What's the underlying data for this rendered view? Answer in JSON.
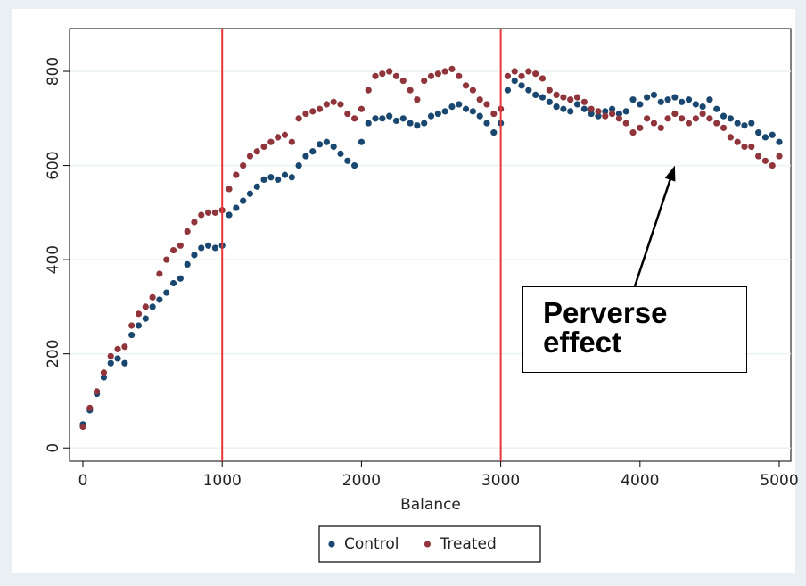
{
  "chart_data": {
    "type": "scatter",
    "x_label": "Balance",
    "x": [
      0,
      50,
      100,
      150,
      200,
      250,
      300,
      350,
      400,
      450,
      500,
      550,
      600,
      650,
      700,
      750,
      800,
      850,
      900,
      950,
      1000,
      1050,
      1100,
      1150,
      1200,
      1250,
      1300,
      1350,
      1400,
      1450,
      1500,
      1550,
      1600,
      1650,
      1700,
      1750,
      1800,
      1850,
      1900,
      1950,
      2000,
      2050,
      2100,
      2150,
      2200,
      2250,
      2300,
      2350,
      2400,
      2450,
      2500,
      2550,
      2600,
      2650,
      2700,
      2750,
      2800,
      2850,
      2900,
      2950,
      3000,
      3050,
      3100,
      3150,
      3200,
      3250,
      3300,
      3350,
      3400,
      3450,
      3500,
      3550,
      3600,
      3650,
      3700,
      3750,
      3800,
      3850,
      3900,
      3950,
      4000,
      4050,
      4100,
      4150,
      4200,
      4250,
      4300,
      4350,
      4400,
      4450,
      4500,
      4550,
      4600,
      4650,
      4700,
      4750,
      4800,
      4850,
      4900,
      4950,
      5000
    ],
    "series": [
      {
        "name": "Control",
        "color": "#1a476f",
        "values": [
          50,
          80,
          115,
          150,
          180,
          190,
          180,
          240,
          260,
          275,
          300,
          315,
          330,
          350,
          360,
          390,
          410,
          425,
          430,
          425,
          430,
          495,
          510,
          525,
          540,
          555,
          570,
          575,
          570,
          580,
          575,
          600,
          620,
          630,
          645,
          650,
          640,
          625,
          610,
          600,
          650,
          690,
          700,
          700,
          705,
          695,
          700,
          690,
          685,
          690,
          705,
          710,
          715,
          725,
          730,
          720,
          715,
          705,
          690,
          670,
          690,
          760,
          780,
          770,
          760,
          750,
          745,
          735,
          725,
          720,
          715,
          730,
          720,
          710,
          705,
          715,
          720,
          710,
          715,
          740,
          730,
          745,
          750,
          735,
          740,
          745,
          735,
          740,
          730,
          725,
          740,
          720,
          705,
          700,
          690,
          685,
          690,
          670,
          660,
          665,
          650
        ]
      },
      {
        "name": "Treated",
        "color": "#90353b",
        "values": [
          45,
          85,
          120,
          160,
          195,
          210,
          215,
          260,
          285,
          300,
          320,
          370,
          400,
          420,
          430,
          460,
          480,
          495,
          500,
          500,
          505,
          550,
          580,
          600,
          620,
          630,
          640,
          650,
          660,
          665,
          650,
          700,
          710,
          715,
          720,
          730,
          735,
          730,
          710,
          700,
          720,
          760,
          790,
          795,
          800,
          790,
          780,
          760,
          740,
          780,
          790,
          795,
          800,
          805,
          790,
          770,
          760,
          740,
          730,
          710,
          720,
          790,
          800,
          790,
          800,
          795,
          785,
          760,
          750,
          745,
          740,
          745,
          735,
          720,
          715,
          705,
          710,
          700,
          690,
          670,
          680,
          700,
          690,
          680,
          700,
          710,
          700,
          690,
          700,
          710,
          700,
          690,
          680,
          660,
          650,
          640,
          640,
          620,
          610,
          600,
          620
        ]
      }
    ],
    "xlim": [
      -96,
      5083
    ],
    "ylim": [
      -28,
      891
    ],
    "xticks": [
      0,
      1000,
      2000,
      3000,
      4000,
      5000
    ],
    "yticks": [
      0,
      200,
      400,
      600,
      800
    ],
    "grid": true,
    "vlines": [
      1000,
      3000
    ],
    "vline_color": "#e8373a",
    "annotation": {
      "text": "Perverse effect",
      "arrow_to": [
        4250,
        600
      ]
    },
    "legend": "bottom"
  }
}
